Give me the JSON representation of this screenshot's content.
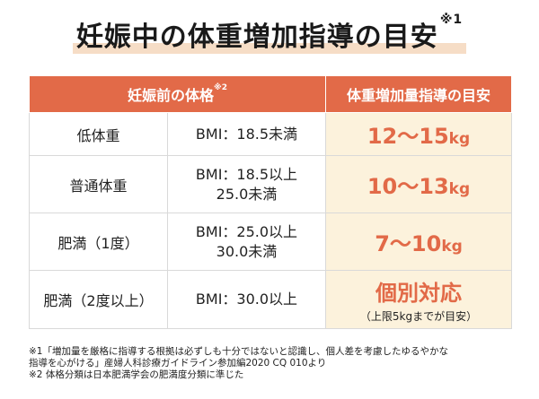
{
  "title": "妊娠中の体重増加指導の目安",
  "title_mark": "※1",
  "header": {
    "col1": "妊娠前の体格",
    "col1_mark": "※2",
    "col2": "体重増加量指導の目安"
  },
  "rows": [
    {
      "category": "低体重",
      "bmi": [
        "BMI：18.5未満"
      ],
      "target": "12〜15",
      "unit": "kg",
      "note": ""
    },
    {
      "category": "普通体重",
      "bmi": [
        "BMI：18.5以上",
        "25.0未満"
      ],
      "target": "10〜13",
      "unit": "kg",
      "note": ""
    },
    {
      "category": "肥満（1度）",
      "bmi": [
        "BMI：25.0以上",
        "30.0未満"
      ],
      "target": "7〜10",
      "unit": "kg",
      "note": ""
    },
    {
      "category": "肥満（2度以上）",
      "bmi": [
        "BMI：30.0以上"
      ],
      "target": "個別対応",
      "unit": "",
      "note": "（上限5kgまでが目安）"
    }
  ],
  "footnotes": [
    "※1「増加量を厳格に指導する根拠は必ずしも十分ではないと認識し、個人差を考慮したゆるやかな",
    "指導を心がける」産婦人科診療ガイドライン参加編2020 CQ 010より",
    "※2 体格分類は日本肥満学会の肥満度分類に準じた"
  ],
  "colors": {
    "header_bg": "#e26a48",
    "target_bg": "#fcf2dc",
    "accent": "#e26a48",
    "title_highlight": "#f6ddc6"
  }
}
